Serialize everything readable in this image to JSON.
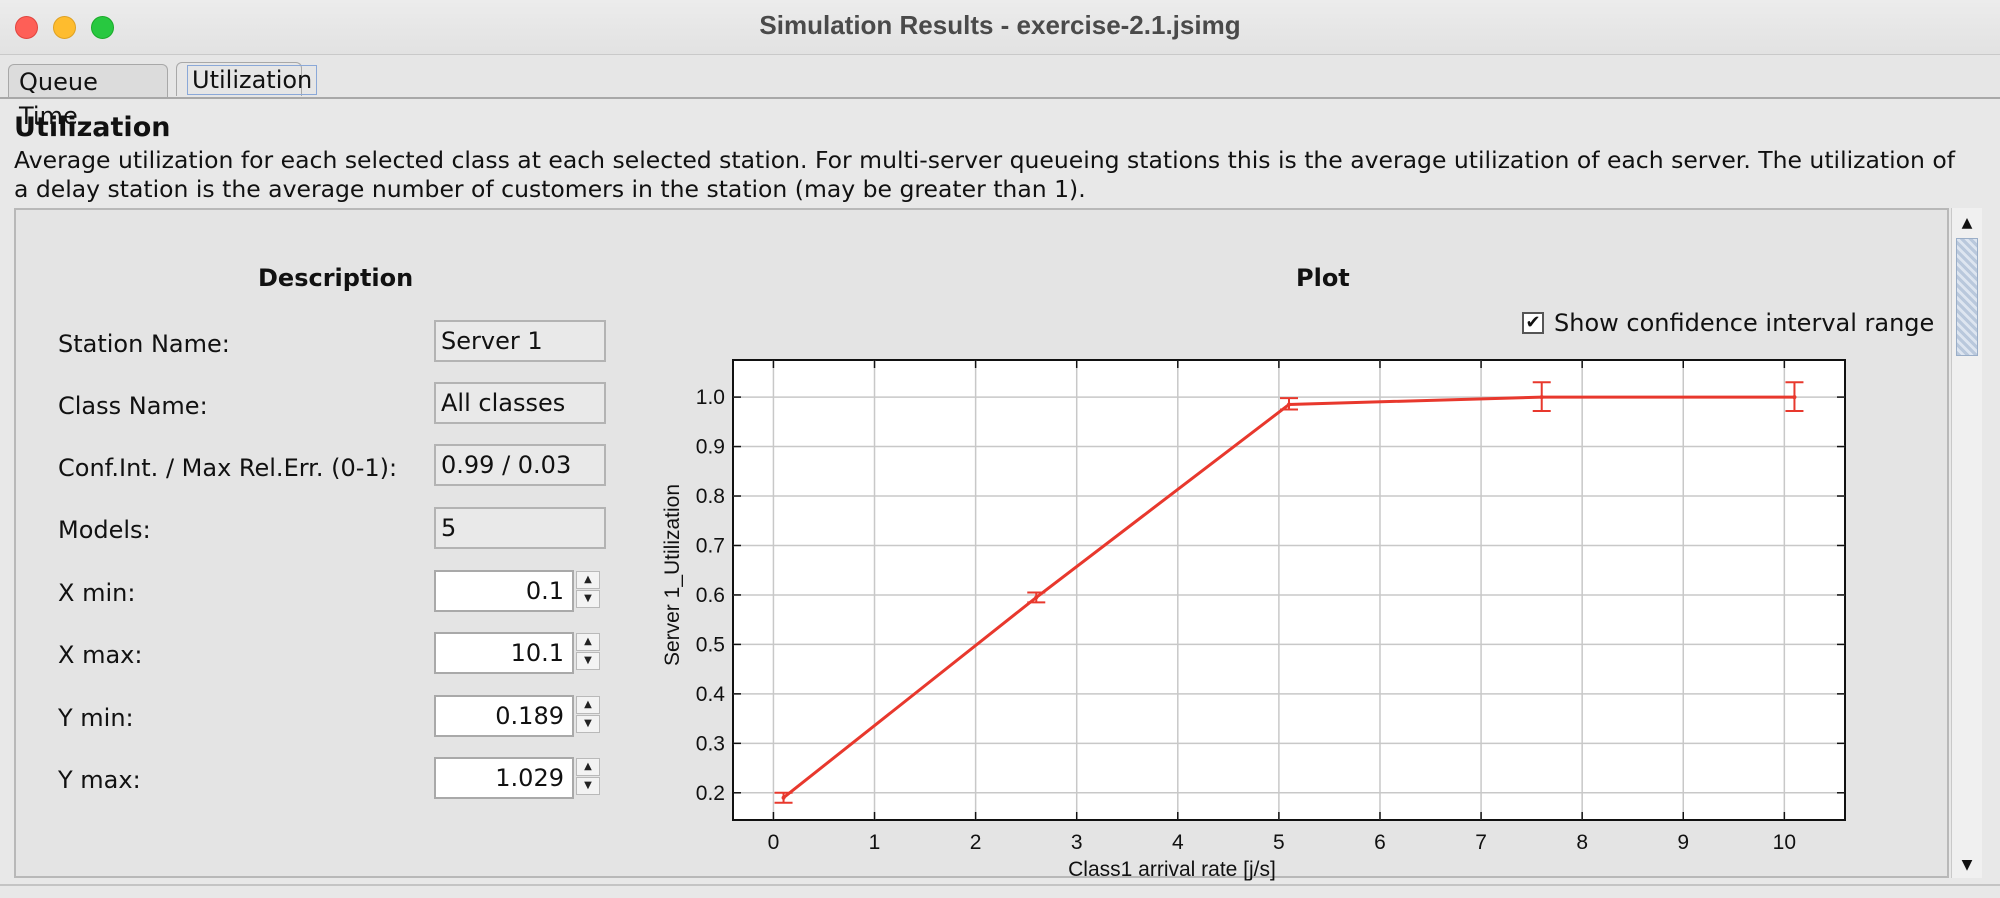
{
  "window": {
    "title": "Simulation Results - exercise-2.1.jsimg"
  },
  "tabs": [
    {
      "label": "Queue Time"
    },
    {
      "label": "Utilization"
    }
  ],
  "page": {
    "title": "Utilization",
    "description": "Average utilization for each selected class at each selected station. For multi-server queueing stations this is the average utilization of each server. The utilization of a delay station is the average number of customers in the station (may be greater than 1)."
  },
  "description_panel": {
    "heading": "Description",
    "fields": [
      {
        "label": "Station Name:",
        "value": "Server 1"
      },
      {
        "label": "Class Name:",
        "value": "All classes"
      },
      {
        "label": "Conf.Int. / Max Rel.Err. (0-1):",
        "value": "0.99 / 0.03"
      },
      {
        "label": "Models:",
        "value": "5"
      }
    ],
    "spinners": [
      {
        "label": "X min:",
        "value": "0.1"
      },
      {
        "label": "X max:",
        "value": "10.1"
      },
      {
        "label": "Y min:",
        "value": "0.189"
      },
      {
        "label": "Y max:",
        "value": "1.029"
      }
    ]
  },
  "plot_panel": {
    "heading": "Plot",
    "show_ci_label": "Show confidence interval range",
    "show_ci_checked": true
  },
  "colors": {
    "series": "#e8382d",
    "grid": "#c8c8c8",
    "plot_bg": "#ffffff"
  },
  "chart_data": {
    "type": "line",
    "xlabel": "Class1 arrival rate [j/s]",
    "ylabel": "Server 1_Utilization",
    "xlim": [
      -0.4,
      10.6
    ],
    "ylim": [
      0.145,
      1.075
    ],
    "xticks": [
      0,
      1,
      2,
      3,
      4,
      5,
      6,
      7,
      8,
      9,
      10
    ],
    "yticks": [
      0.2,
      0.3,
      0.4,
      0.5,
      0.6,
      0.7,
      0.8,
      0.9,
      1.0
    ],
    "ytick_labels": [
      "0.2",
      "0.3",
      "0.4",
      "0.5",
      "0.6",
      "0.7",
      "0.8",
      "0.9",
      "1.0"
    ],
    "grid": true,
    "series": [
      {
        "x": [
          0.1,
          2.6,
          5.1,
          7.6,
          10.1
        ],
        "y": [
          0.19,
          0.595,
          0.985,
          1.0,
          1.0
        ],
        "ci_low": [
          0.18,
          0.585,
          0.975,
          0.972,
          0.972
        ],
        "ci_high": [
          0.2,
          0.605,
          0.998,
          1.03,
          1.03
        ]
      }
    ]
  }
}
